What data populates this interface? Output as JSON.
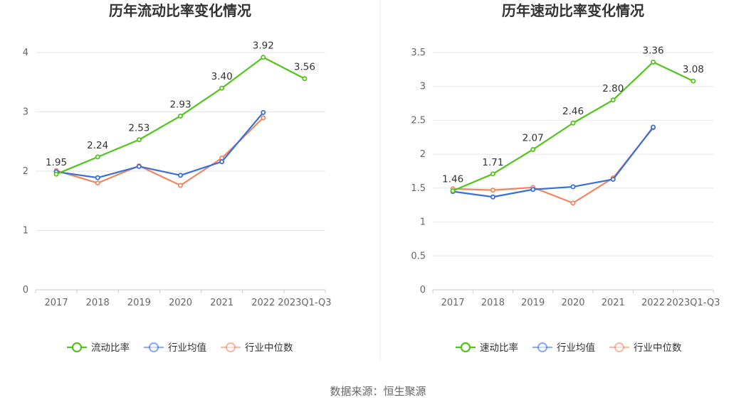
{
  "chart_data": [
    {
      "type": "line",
      "title": "历年流动比率变化情况",
      "categories": [
        "2017",
        "2018",
        "2019",
        "2020",
        "2021",
        "2022",
        "2023Q1-Q3"
      ],
      "ylim": [
        0,
        4
      ],
      "yticks": [
        "0",
        "1",
        "2",
        "3",
        "4"
      ],
      "grid": true,
      "legend_position": "bottom",
      "series": [
        {
          "name": "流动比率",
          "color": "#52c41a",
          "labels": true,
          "values": [
            1.95,
            2.24,
            2.53,
            2.93,
            3.4,
            3.92,
            3.56
          ],
          "value_labels": [
            "1.95",
            "2.24",
            "2.53",
            "2.93",
            "3.40",
            "3.92",
            "3.56"
          ]
        },
        {
          "name": "行业均值",
          "color": "#3a6fd8",
          "labels": false,
          "values": [
            1.99,
            1.89,
            2.08,
            1.93,
            2.16,
            2.99,
            null
          ]
        },
        {
          "name": "行业中位数",
          "color": "#f08660",
          "labels": false,
          "values": [
            2.01,
            1.8,
            2.09,
            1.76,
            2.22,
            2.9,
            null
          ]
        }
      ]
    },
    {
      "type": "line",
      "title": "历年速动比率变化情况",
      "categories": [
        "2017",
        "2018",
        "2019",
        "2020",
        "2021",
        "2022",
        "2023Q1-Q3"
      ],
      "ylim": [
        0,
        3.5
      ],
      "yticks": [
        "0",
        "0.5",
        "1",
        "1.5",
        "2",
        "2.5",
        "3",
        "3.5"
      ],
      "grid": true,
      "legend_position": "bottom",
      "series": [
        {
          "name": "速动比率",
          "color": "#52c41a",
          "labels": true,
          "values": [
            1.46,
            1.71,
            2.07,
            2.46,
            2.8,
            3.36,
            3.08
          ],
          "value_labels": [
            "1.46",
            "1.71",
            "2.07",
            "2.46",
            "2.80",
            "3.36",
            "3.08"
          ]
        },
        {
          "name": "行业均值",
          "color": "#3a6fd8",
          "labels": false,
          "values": [
            1.45,
            1.37,
            1.48,
            1.52,
            1.63,
            2.4,
            null
          ]
        },
        {
          "name": "行业中位数",
          "color": "#f08660",
          "labels": false,
          "values": [
            1.49,
            1.47,
            1.51,
            1.28,
            1.65,
            2.39,
            null
          ]
        }
      ]
    }
  ],
  "source": "数据来源：恒生聚源"
}
